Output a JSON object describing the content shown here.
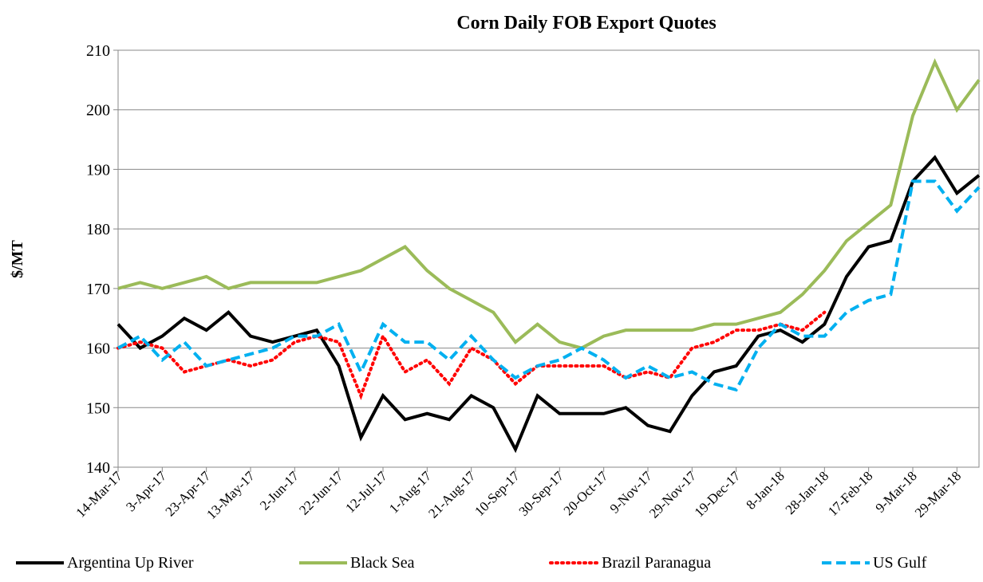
{
  "chart_data": {
    "type": "line",
    "title": "Corn Daily FOB Export Quotes",
    "y_label": "$/MT",
    "x": [
      "14-Mar-17",
      "24-Mar-17",
      "3-Apr-17",
      "13-Apr-17",
      "23-Apr-17",
      "3-May-17",
      "13-May-17",
      "23-May-17",
      "2-Jun-17",
      "12-Jun-17",
      "22-Jun-17",
      "2-Jul-17",
      "12-Jul-17",
      "22-Jul-17",
      "1-Aug-17",
      "11-Aug-17",
      "21-Aug-17",
      "31-Aug-17",
      "10-Sep-17",
      "20-Sep-17",
      "30-Sep-17",
      "10-Oct-17",
      "20-Oct-17",
      "30-Oct-17",
      "9-Nov-17",
      "19-Nov-17",
      "29-Nov-17",
      "9-Dec-17",
      "19-Dec-17",
      "29-Dec-17",
      "8-Jan-18",
      "18-Jan-18",
      "28-Jan-18",
      "7-Feb-18",
      "17-Feb-18",
      "27-Feb-18",
      "9-Mar-18",
      "19-Mar-18",
      "29-Mar-18",
      "8-Apr-18"
    ],
    "series": [
      {
        "name": "Argentina Up River",
        "color": "#000000",
        "dash": "solid",
        "values": [
          164,
          160,
          162,
          165,
          163,
          166,
          162,
          161,
          162,
          163,
          157,
          145,
          152,
          148,
          149,
          148,
          152,
          150,
          143,
          152,
          149,
          149,
          149,
          150,
          147,
          146,
          152,
          156,
          157,
          162,
          163,
          161,
          164,
          172,
          177,
          178,
          188,
          192,
          186,
          189
        ]
      },
      {
        "name": "Black Sea",
        "color": "#9bbb59",
        "dash": "solid",
        "values": [
          170,
          171,
          170,
          171,
          172,
          170,
          171,
          171,
          171,
          171,
          172,
          173,
          175,
          177,
          173,
          170,
          168,
          166,
          161,
          164,
          161,
          160,
          162,
          163,
          163,
          163,
          163,
          164,
          164,
          165,
          166,
          169,
          173,
          178,
          181,
          184,
          199,
          208,
          200,
          205
        ]
      },
      {
        "name": "Brazil Paranagua",
        "color": "#ff0000",
        "dash": "dotted",
        "values": [
          160,
          161,
          160,
          156,
          157,
          158,
          157,
          158,
          161,
          162,
          161,
          152,
          162,
          156,
          158,
          154,
          160,
          158,
          154,
          157,
          157,
          157,
          157,
          155,
          156,
          155,
          160,
          161,
          163,
          163,
          164,
          163,
          166,
          null,
          null,
          null,
          null,
          null,
          null,
          null
        ]
      },
      {
        "name": "US Gulf",
        "color": "#00b0f0",
        "dash": "dashed",
        "values": [
          160,
          162,
          158,
          161,
          157,
          158,
          159,
          160,
          162,
          162,
          164,
          156,
          164,
          161,
          161,
          158,
          162,
          158,
          155,
          157,
          158,
          160,
          158,
          155,
          157,
          155,
          156,
          154,
          153,
          160,
          164,
          162,
          162,
          166,
          168,
          169,
          188,
          188,
          183,
          187
        ]
      }
    ],
    "xlim": [
      "14-Mar-17",
      "8-Apr-18"
    ],
    "xticks": [
      "14-Mar-17",
      "3-Apr-17",
      "23-Apr-17",
      "13-May-17",
      "2-Jun-17",
      "22-Jun-17",
      "12-Jul-17",
      "1-Aug-17",
      "21-Aug-17",
      "10-Sep-17",
      "30-Sep-17",
      "20-Oct-17",
      "9-Nov-17",
      "29-Nov-17",
      "19-Dec-17",
      "8-Jan-18",
      "28-Jan-18",
      "17-Feb-18",
      "9-Mar-18",
      "29-Mar-18"
    ],
    "ylim": [
      140,
      210
    ],
    "yticks": [
      140,
      150,
      160,
      170,
      180,
      190,
      200,
      210
    ],
    "grid": true,
    "legend": "bottom"
  }
}
